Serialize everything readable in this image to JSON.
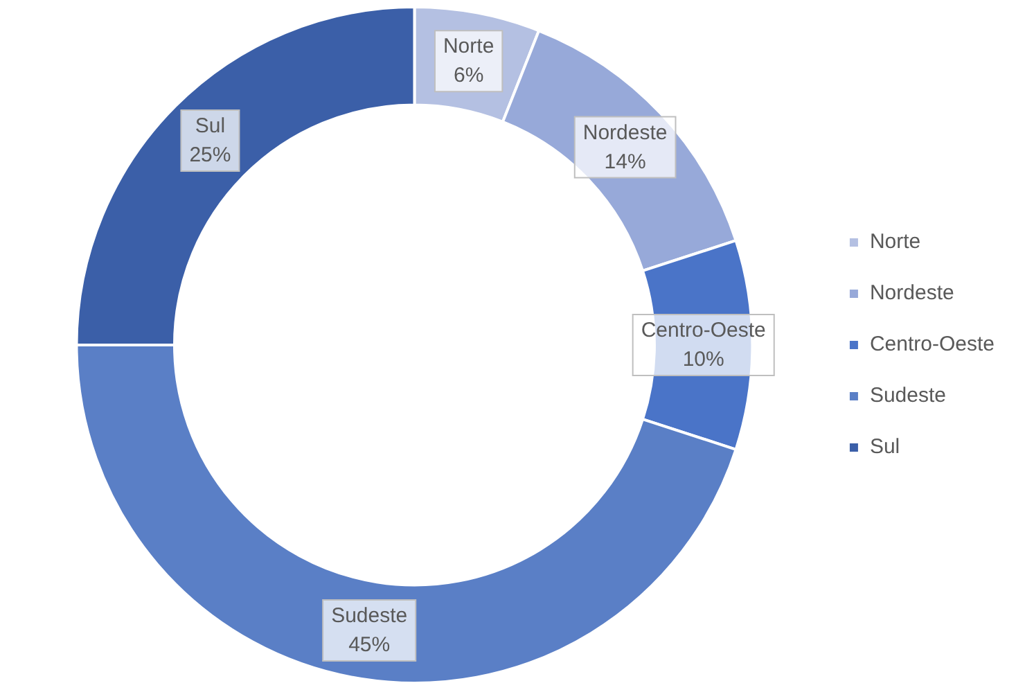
{
  "chart_data": {
    "type": "donut",
    "categories": [
      "Norte",
      "Nordeste",
      "Centro-Oeste",
      "Sudeste",
      "Sul"
    ],
    "values": [
      6,
      14,
      10,
      45,
      25
    ],
    "value_labels": [
      "6%",
      "14%",
      "10%",
      "45%",
      "25%"
    ],
    "colors": [
      "#b4c0e2",
      "#97a9d9",
      "#4a74c8",
      "#5a7fc6",
      "#3b5fa8"
    ],
    "legend": "right"
  }
}
